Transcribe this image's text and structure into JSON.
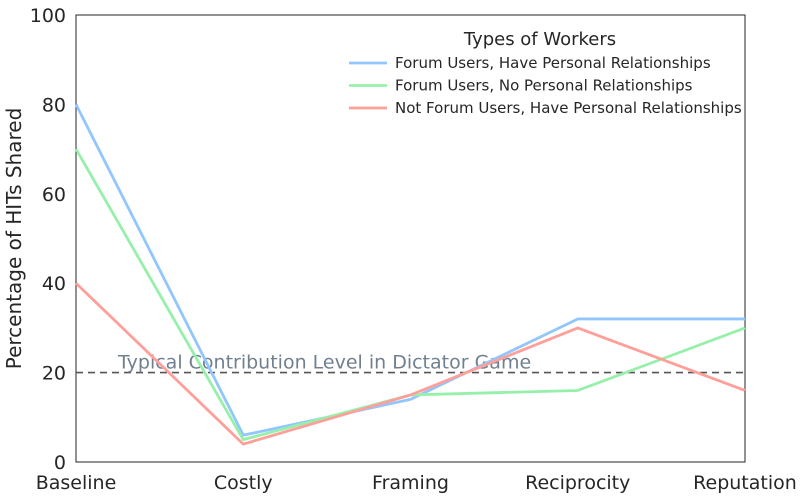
{
  "chart_data": {
    "type": "line",
    "categories": [
      "Baseline",
      "Costly",
      "Framing",
      "Reciprocity",
      "Reputation"
    ],
    "series": [
      {
        "name": "Forum Users, Have Personal Relationships",
        "color": "#92c6ff",
        "values": [
          80,
          6,
          14,
          32,
          32
        ]
      },
      {
        "name": "Forum Users, No Personal Relationships",
        "color": "#97f0aa",
        "values": [
          70,
          5,
          15,
          16,
          30
        ]
      },
      {
        "name": "Not Forum Users, Have Personal Relationships",
        "color": "#ff9f9a",
        "values": [
          40,
          4,
          15,
          30,
          16
        ]
      }
    ],
    "ylabel": "Percentage of HITs Shared",
    "xlabel": "",
    "ylim": [
      0,
      100
    ],
    "yticks": [
      0,
      20,
      40,
      60,
      80,
      100
    ],
    "legend": {
      "title": "Types of Workers",
      "position": "top-right"
    },
    "reference_line": {
      "value": 20,
      "label": "Typical Contribution Level in Dictator Game",
      "color": "#555555",
      "style": "dashed"
    },
    "grid": false
  }
}
